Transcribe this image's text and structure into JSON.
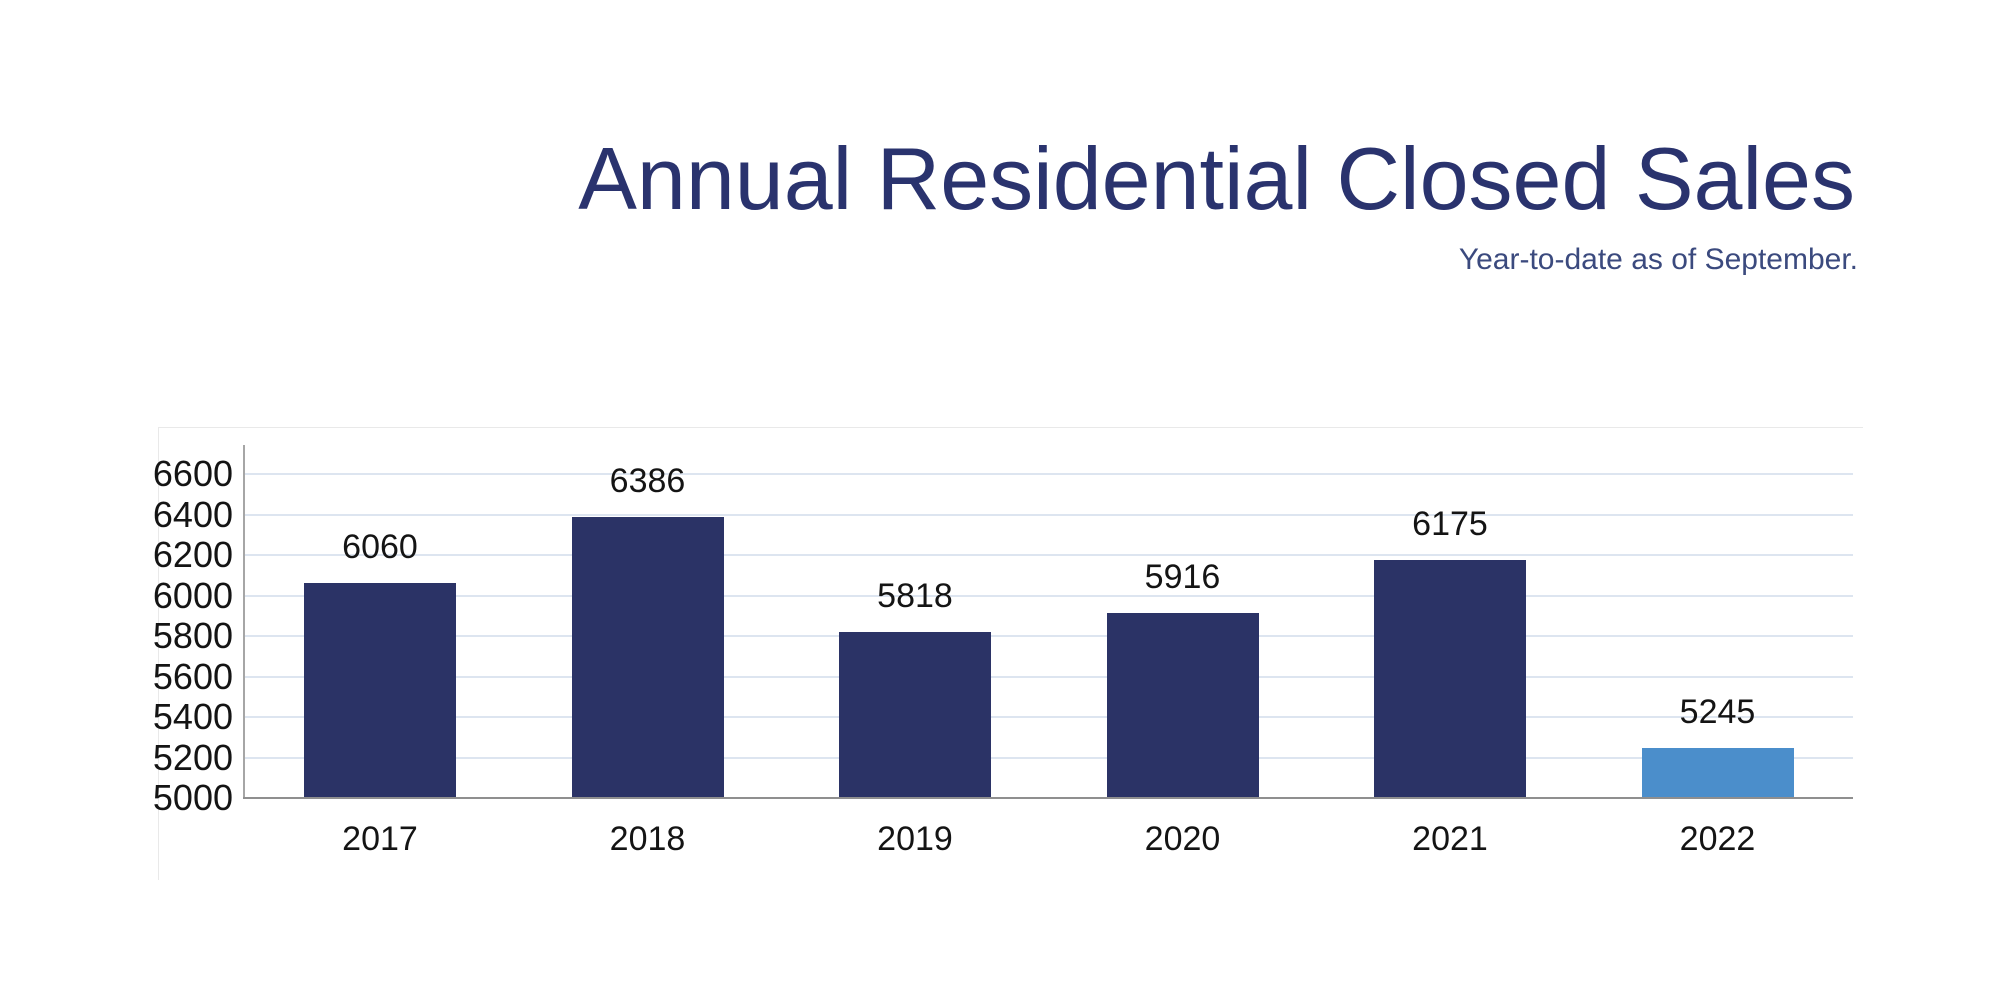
{
  "header": {
    "title": "Annual Residential Closed Sales",
    "subtitle": "Year-to-date as of September."
  },
  "colors": {
    "title_text": "#2a336e",
    "subtitle_text": "#3b4a7e",
    "bar_primary": "#2b3366",
    "bar_highlight": "#4b8ecb",
    "gridline": "#dde5f0",
    "y_axis_line": "#a6a6a6",
    "x_axis_line": "#8f8f8f",
    "tick_label_text": "#141414"
  },
  "chart_data": {
    "type": "bar",
    "title": "Annual Residential Closed Sales",
    "subtitle": "Year-to-date as of September.",
    "categories": [
      "2017",
      "2018",
      "2019",
      "2020",
      "2021",
      "2022"
    ],
    "values": [
      6060,
      6386,
      5818,
      5916,
      6175,
      5245
    ],
    "value_labels": [
      "6060",
      "6386",
      "5818",
      "5916",
      "6175",
      "5245"
    ],
    "bar_colors": [
      "#2b3366",
      "#2b3366",
      "#2b3366",
      "#2b3366",
      "#2b3366",
      "#4b8ecb"
    ],
    "xlabel": "",
    "ylabel": "",
    "ylim": [
      5000,
      6700
    ],
    "yticks": [
      5000,
      5200,
      5400,
      5600,
      5800,
      6000,
      6200,
      6400,
      6600
    ],
    "grid": true,
    "legend": false
  }
}
